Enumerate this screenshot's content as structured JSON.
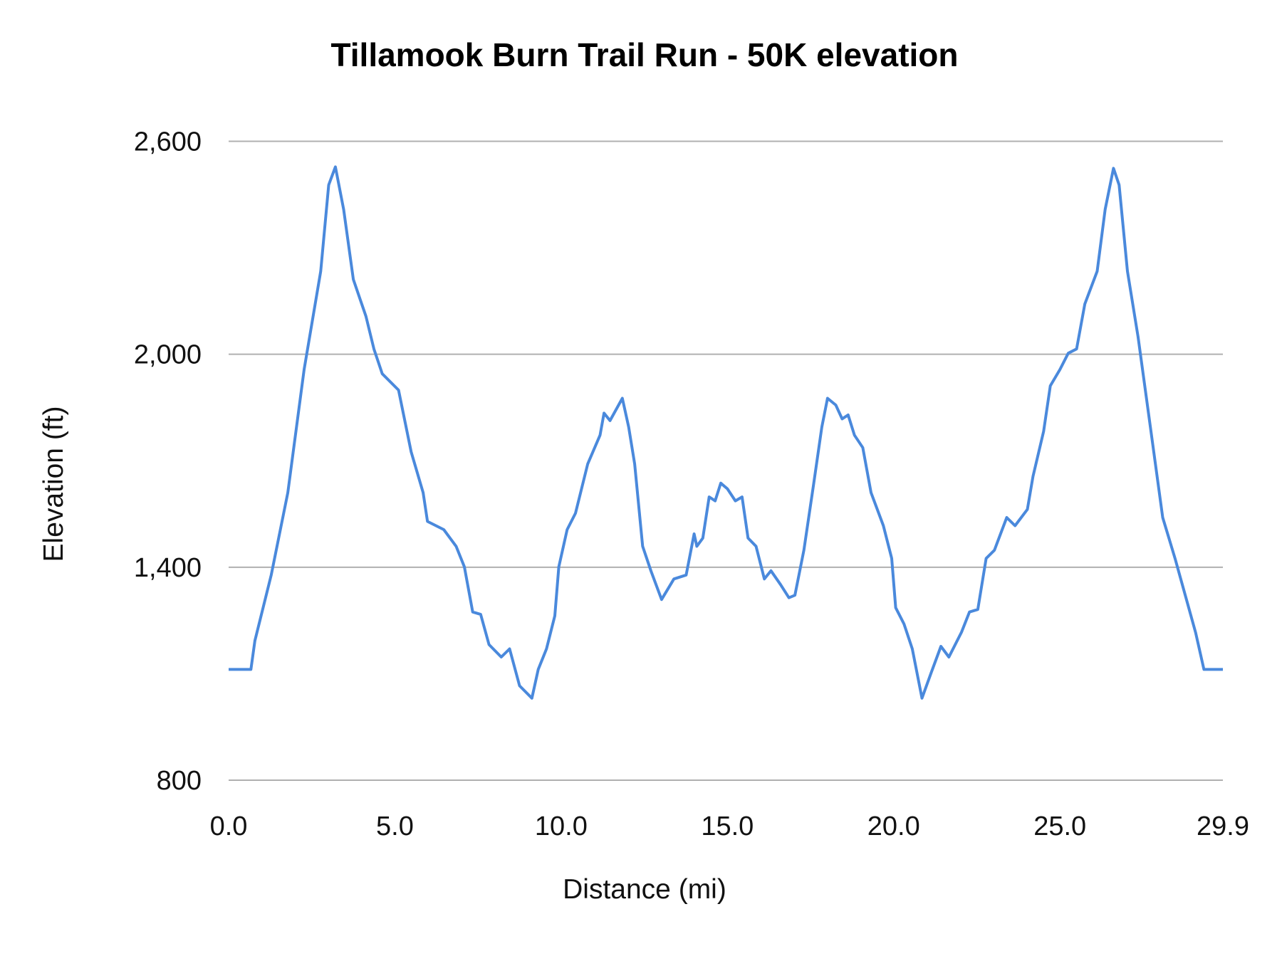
{
  "chart_data": {
    "type": "line",
    "title": "Tillamook Burn Trail Run - 50K elevation",
    "xlabel": "Distance (mi)",
    "ylabel": "Elevation (ft)",
    "xlim": [
      0,
      29.9
    ],
    "ylim": [
      800,
      2600
    ],
    "x_ticks": [
      "0.0",
      "5.0",
      "10.0",
      "15.0",
      "20.0",
      "25.0",
      "29.9"
    ],
    "x_tick_values": [
      0,
      5,
      10,
      15,
      20,
      25,
      29.9
    ],
    "y_ticks": [
      "800",
      "1,400",
      "2,000",
      "2,600"
    ],
    "y_tick_values": [
      800,
      1400,
      2000,
      2600
    ],
    "grid": "horizontal",
    "legend": "none",
    "line_color": "#4a89dc",
    "grid_color": "#b0b0b0",
    "series": [
      {
        "x": [
          0,
          0.67,
          0.79,
          1.28,
          1.78,
          2.27,
          2.77,
          3.01,
          3.21,
          3.46,
          3.75,
          4.13,
          4.37,
          4.62,
          5.11,
          5.49,
          5.85,
          5.98,
          6.47,
          6.84,
          7.09,
          7.34,
          7.58,
          7.83,
          8.2,
          8.45,
          8.75,
          9.12,
          9.31,
          9.56,
          9.81,
          9.93,
          10.18,
          10.43,
          10.8,
          11.17,
          11.29,
          11.47,
          11.84,
          12.03,
          12.21,
          12.45,
          12.7,
          13.02,
          13.39,
          13.76,
          14.0,
          14.08,
          14.26,
          14.45,
          14.63,
          14.8,
          15.0,
          15.24,
          15.44,
          15.62,
          15.86,
          16.11,
          16.31,
          16.6,
          16.85,
          17.03,
          17.3,
          17.59,
          17.84,
          18.01,
          18.26,
          18.45,
          18.63,
          18.82,
          19.07,
          19.32,
          19.69,
          19.94,
          20.06,
          20.31,
          20.56,
          20.85,
          21.12,
          21.42,
          21.66,
          22.04,
          22.28,
          22.53,
          22.78,
          23.03,
          23.4,
          23.65,
          24.02,
          24.19,
          24.51,
          24.71,
          25.0,
          25.25,
          25.5,
          25.75,
          26.12,
          26.36,
          26.61,
          26.78,
          27.03,
          27.35,
          27.72,
          28.09,
          28.46,
          28.84,
          29.08,
          29.33,
          29.9
        ],
        "y": [
          1112,
          1112,
          1193,
          1378,
          1610,
          1957,
          2234,
          2477,
          2528,
          2408,
          2211,
          2107,
          2015,
          1945,
          1899,
          1725,
          1610,
          1529,
          1506,
          1459,
          1401,
          1274,
          1267,
          1182,
          1147,
          1170,
          1066,
          1031,
          1112,
          1170,
          1263,
          1401,
          1506,
          1552,
          1691,
          1772,
          1834,
          1813,
          1876,
          1795,
          1691,
          1459,
          1390,
          1309,
          1367,
          1378,
          1494,
          1459,
          1482,
          1598,
          1587,
          1637,
          1621,
          1587,
          1598,
          1482,
          1459,
          1367,
          1390,
          1351,
          1314,
          1321,
          1448,
          1633,
          1795,
          1876,
          1857,
          1818,
          1829,
          1772,
          1737,
          1610,
          1517,
          1425,
          1286,
          1240,
          1170,
          1031,
          1101,
          1177,
          1147,
          1217,
          1274,
          1281,
          1425,
          1448,
          1540,
          1517,
          1563,
          1656,
          1783,
          1911,
          1957,
          2003,
          2015,
          2142,
          2234,
          2408,
          2524,
          2477,
          2234,
          2049,
          1795,
          1540,
          1425,
          1297,
          1216,
          1112,
          1112
        ]
      }
    ]
  }
}
